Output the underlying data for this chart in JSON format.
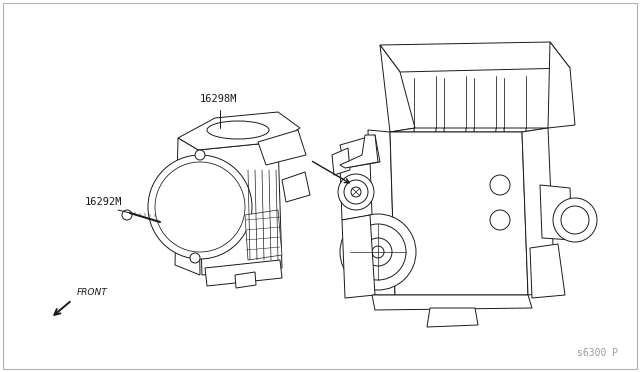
{
  "background_color": "#ffffff",
  "border_color": "#b0b0b0",
  "line_color": "#1a1a1a",
  "label_16298M": "16298M",
  "label_16292M": "16292M",
  "label_front": "FRONT",
  "ref_number": "s6300 P",
  "label_fontsize": 7.5,
  "ref_fontsize": 7,
  "fig_width": 6.4,
  "fig_height": 3.72,
  "dpi": 100
}
